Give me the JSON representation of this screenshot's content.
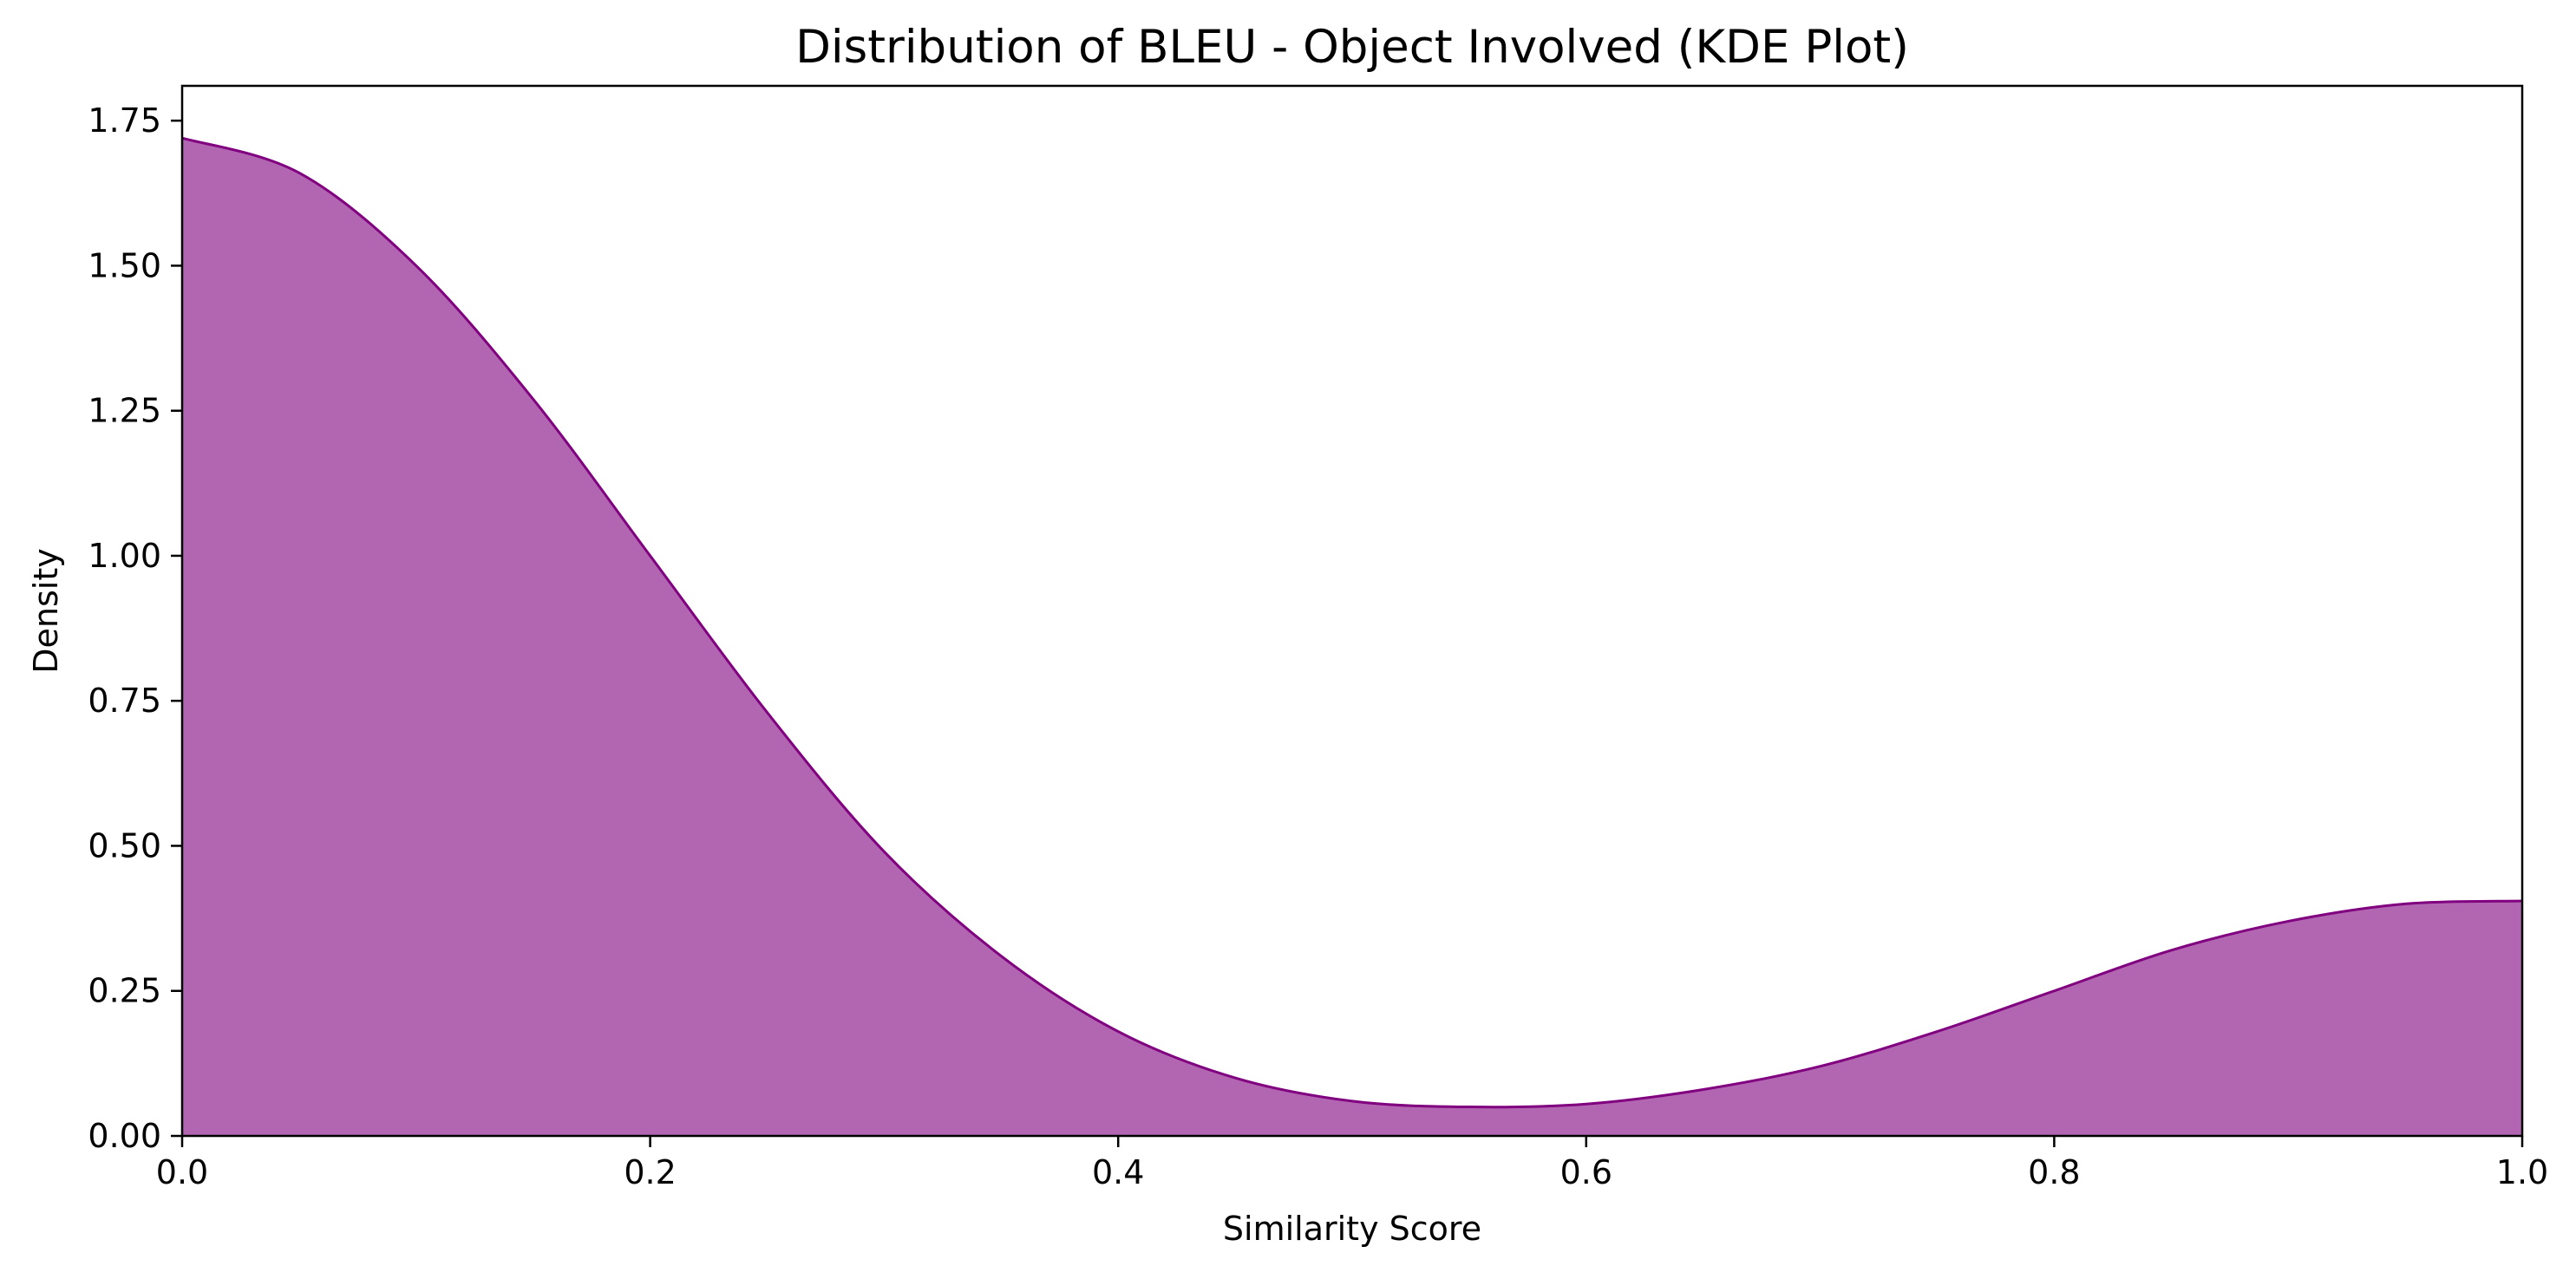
{
  "chart_data": {
    "type": "area",
    "title": "Distribution of BLEU - Object Involved (KDE Plot)",
    "xlabel": "Similarity Score",
    "ylabel": "Density",
    "xlim": [
      0.0,
      1.0
    ],
    "ylim": [
      0.0,
      1.81
    ],
    "x_ticks": [
      "0.0",
      "0.2",
      "0.4",
      "0.6",
      "0.8",
      "1.0"
    ],
    "y_ticks": [
      "0.00",
      "0.25",
      "0.50",
      "0.75",
      "1.00",
      "1.25",
      "1.50",
      "1.75"
    ],
    "grid": false,
    "legend": "none",
    "series": [
      {
        "x": [
          0.0,
          0.05,
          0.1,
          0.15,
          0.2,
          0.25,
          0.3,
          0.35,
          0.4,
          0.45,
          0.5,
          0.55,
          0.6,
          0.65,
          0.7,
          0.75,
          0.8,
          0.85,
          0.9,
          0.95,
          1.0
        ],
        "y": [
          1.72,
          1.66,
          1.5,
          1.27,
          1.0,
          0.73,
          0.49,
          0.31,
          0.18,
          0.1,
          0.06,
          0.05,
          0.055,
          0.08,
          0.12,
          0.18,
          0.25,
          0.32,
          0.37,
          0.4,
          0.405
        ]
      }
    ],
    "colors": {
      "fill": "#b266b2",
      "line": "#800080"
    }
  }
}
